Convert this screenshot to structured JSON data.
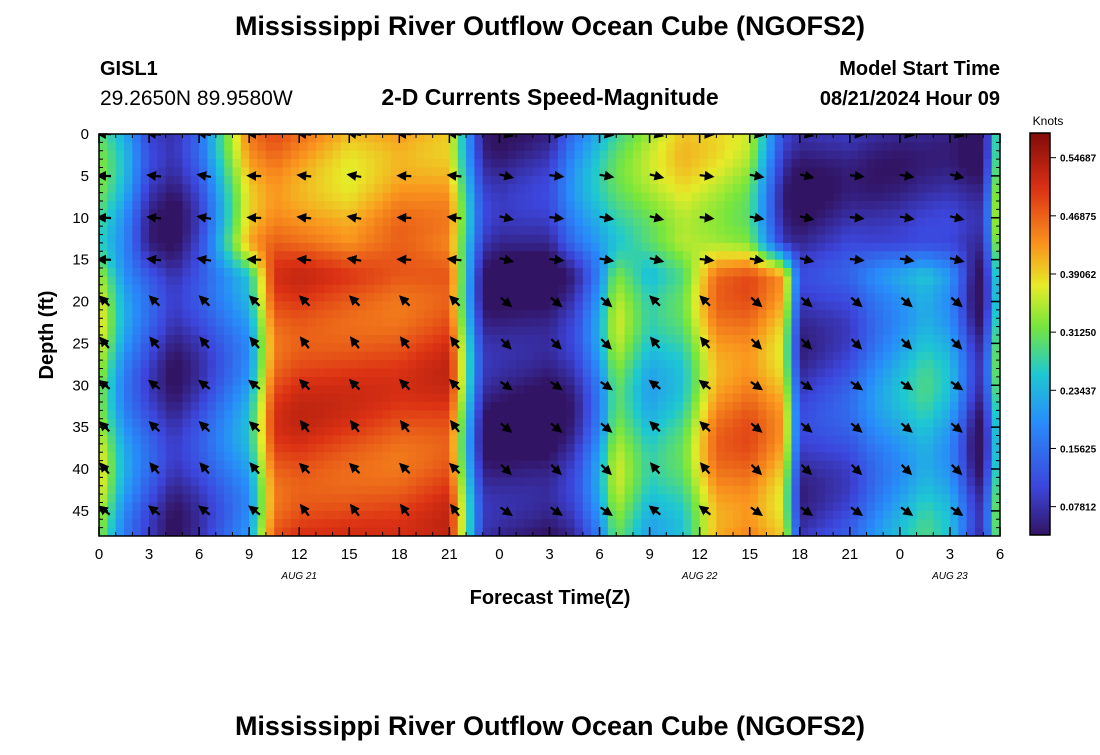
{
  "header": {
    "title": "Mississippi River Outflow Ocean Cube (NGOFS2)",
    "station_id": "GISL1",
    "coordinates": "29.2650N  89.9580W",
    "plot_title": "2-D Currents Speed-Magnitude",
    "model_start_label": "Model Start Time",
    "model_start_value": "08/21/2024 Hour 09",
    "bottom_title": "Mississippi River Outflow Ocean Cube (NGOFS2)"
  },
  "chart_data": {
    "type": "heatmap",
    "title": "2-D Currents Speed-Magnitude",
    "xlabel": "Forecast Time(Z)",
    "ylabel": "Depth (ft)",
    "x_tick_labels": [
      "0",
      "3",
      "6",
      "9",
      "12",
      "15",
      "18",
      "21",
      "0",
      "3",
      "6",
      "9",
      "12",
      "15",
      "18",
      "21",
      "0",
      "3",
      "6"
    ],
    "x_range_hours": [
      0,
      54
    ],
    "date_labels": [
      {
        "label": "AUG 21",
        "hour": 12
      },
      {
        "label": "AUG 22",
        "hour": 36
      },
      {
        "label": "AUG 23",
        "hour": 51
      }
    ],
    "y_ticks": [
      0,
      5,
      10,
      15,
      20,
      25,
      30,
      35,
      40,
      45
    ],
    "y_range_ft": [
      0,
      48
    ],
    "colorbar": {
      "label": "Knots",
      "range": [
        0.04,
        0.58
      ],
      "tick_values": [
        0.07812,
        0.15625,
        0.23437,
        0.3125,
        0.39062,
        0.46875,
        0.54687
      ],
      "tick_labels": [
        "0.07812",
        "0.15625",
        "0.23437",
        "0.31250",
        "0.39062",
        "0.46875",
        "0.54687"
      ]
    },
    "vector_hours": [
      0,
      3,
      6,
      9,
      12,
      15,
      18,
      21,
      24,
      27,
      30,
      33,
      36,
      39,
      42,
      45,
      48,
      51
    ],
    "vector_depths_ft": [
      0,
      5,
      10,
      15,
      20,
      25,
      30,
      35,
      40,
      45
    ],
    "speed_profile_upper_0_15ft": [
      0.3,
      0.22,
      0.08,
      0.05,
      0.12,
      0.42,
      0.46,
      0.44,
      0.4,
      0.44,
      0.42,
      0.08,
      0.06,
      0.08,
      0.18,
      0.24,
      0.28,
      0.33,
      0.38,
      0.36,
      0.33,
      0.08,
      0.05,
      0.08,
      0.07,
      0.07,
      0.08,
      0.08,
      0.06,
      0.05,
      0.05,
      0.2,
      0.4
    ],
    "speed_profile_lower_15_48ft": [
      0.36,
      0.2,
      0.12,
      0.06,
      0.1,
      0.22,
      0.48,
      0.5,
      0.49,
      0.48,
      0.5,
      0.06,
      0.05,
      0.04,
      0.08,
      0.2,
      0.34,
      0.24,
      0.28,
      0.44,
      0.46,
      0.4,
      0.08,
      0.12,
      0.18,
      0.22,
      0.26,
      0.22,
      0.12,
      0.06,
      0.05,
      0.2,
      0.34
    ],
    "speed_profile_breakpoint_hours": [
      0,
      1.5,
      3,
      4.5,
      6,
      9,
      10.5,
      12,
      15,
      18,
      21,
      23,
      24,
      27,
      28.5,
      30,
      31,
      33,
      35,
      37,
      39,
      41,
      42,
      45,
      46.5,
      48,
      49.5,
      51,
      52,
      52.5,
      53,
      53.5,
      54
    ]
  }
}
